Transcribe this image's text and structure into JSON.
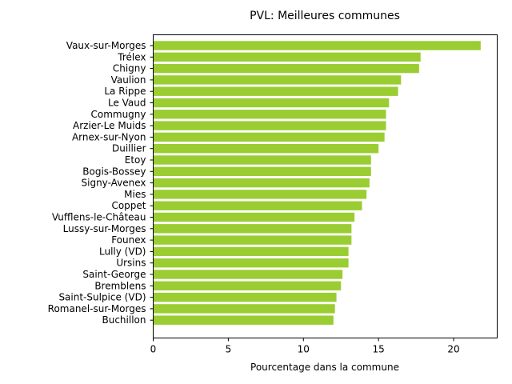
{
  "chart_data": {
    "type": "bar",
    "orientation": "horizontal",
    "title": "PVL: Meilleures communes",
    "xlabel": "Pourcentage dans la commune",
    "ylabel": "",
    "xlim": [
      0,
      22.9
    ],
    "xticks": [
      0,
      5,
      10,
      15,
      20
    ],
    "grid": false,
    "bar_color": "#9acd32",
    "categories": [
      "Vaux-sur-Morges",
      "Trélex",
      "Chigny",
      "Vaulion",
      "La Rippe",
      "Le Vaud",
      "Commugny",
      "Arzier-Le Muids",
      "Arnex-sur-Nyon",
      "Duillier",
      "Etoy",
      "Bogis-Bossey",
      "Signy-Avenex",
      "Mies",
      "Coppet",
      "Vufflens-le-Château",
      "Lussy-sur-Morges",
      "Founex",
      "Lully (VD)",
      "Ursins",
      "Saint-George",
      "Bremblens",
      "Saint-Sulpice (VD)",
      "Romanel-sur-Morges",
      "Buchillon"
    ],
    "values": [
      21.8,
      17.8,
      17.7,
      16.5,
      16.3,
      15.7,
      15.5,
      15.5,
      15.4,
      15.0,
      14.5,
      14.5,
      14.4,
      14.2,
      13.9,
      13.4,
      13.2,
      13.2,
      13.0,
      13.0,
      12.6,
      12.5,
      12.2,
      12.1,
      12.0
    ]
  }
}
